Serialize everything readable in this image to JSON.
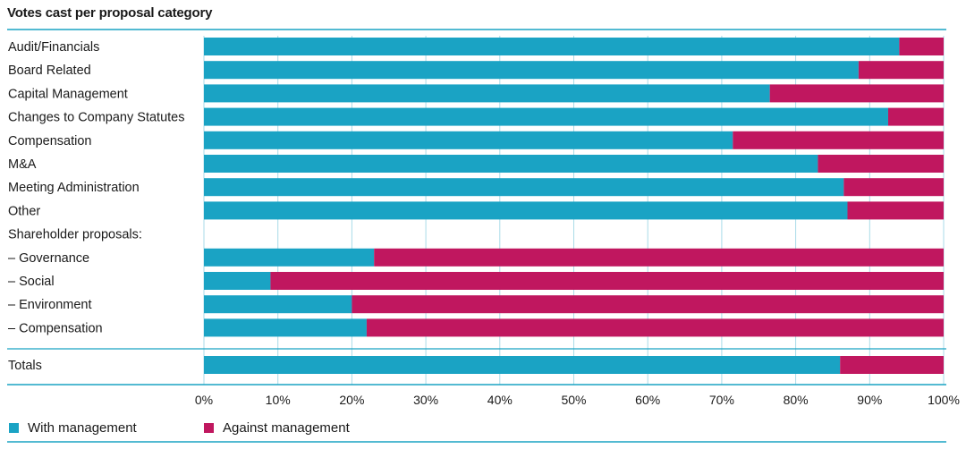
{
  "chart_data": {
    "type": "bar",
    "orientation": "horizontal",
    "stacked": true,
    "title": "Votes cast per proposal category",
    "categories": [
      "Audit/Financials",
      "Board Related",
      "Capital Management",
      "Changes to Company Statutes",
      "Compensation",
      "M&A",
      "Meeting Administration",
      "Other",
      "Shareholder proposals:",
      "– Governance",
      "– Social",
      "– Environment",
      "– Compensation",
      "Totals"
    ],
    "series": [
      {
        "name": "With management",
        "color": "#1aa3c4",
        "values": [
          94,
          88.5,
          76.5,
          92.5,
          71.5,
          83,
          86.5,
          87,
          null,
          23,
          9,
          20,
          22,
          86
        ]
      },
      {
        "name": "Against management",
        "color": "#c0175f",
        "values": [
          6,
          11.5,
          23.5,
          7.5,
          28.5,
          17,
          13.5,
          13,
          null,
          77,
          91,
          80,
          78,
          14
        ]
      }
    ],
    "xlim": [
      0,
      100
    ],
    "xticks": [
      "0%",
      "10%",
      "20%",
      "30%",
      "40%",
      "50%",
      "60%",
      "70%",
      "80%",
      "90%",
      "100%"
    ],
    "grid": true,
    "legend_position": "bottom-left",
    "accent_line_color": "#1aa3c4",
    "grid_color": "#a9dbe8"
  }
}
